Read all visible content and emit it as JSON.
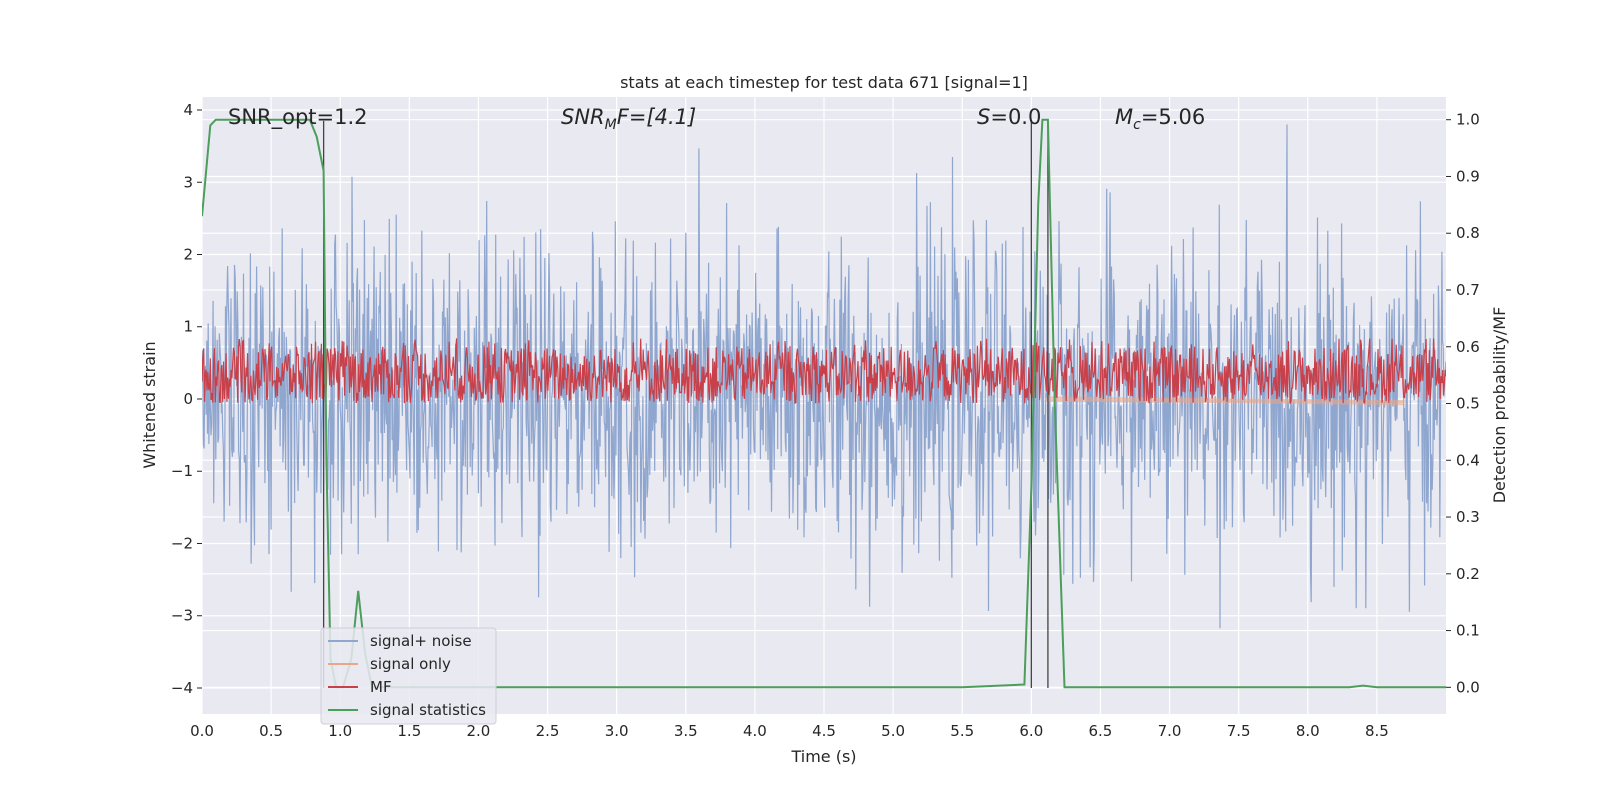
{
  "chart_data": {
    "type": "line",
    "title": "stats at each timestep for test data 671 [signal=1]",
    "xlabel": "Time (s)",
    "ylabel": "Whitened strain",
    "y2label": "Detection probability/MF",
    "xlim": [
      0.0,
      9.0
    ],
    "ylim": [
      -4.36,
      4.18
    ],
    "y2lim": [
      -0.047,
      1.04
    ],
    "xticks": [
      "0.0",
      "0.5",
      "1.0",
      "1.5",
      "2.0",
      "2.5",
      "3.0",
      "3.5",
      "4.0",
      "4.5",
      "5.0",
      "5.5",
      "6.0",
      "6.5",
      "7.0",
      "7.5",
      "8.0",
      "8.5"
    ],
    "yticks": [
      "4",
      "3",
      "2",
      "1",
      "0",
      "−1",
      "−2",
      "−3",
      "−4"
    ],
    "y2ticks": [
      "1.0",
      "0.9",
      "0.8",
      "0.7",
      "0.6",
      "0.5",
      "0.4",
      "0.3",
      "0.2",
      "0.1",
      "0.0"
    ],
    "grid": true,
    "legend_position": "lower-left",
    "annotations": [
      {
        "text": "SNR_opt=1.2"
      },
      {
        "main": "SNR",
        "sub": "M",
        "rest": "F=[4.1]"
      },
      {
        "main": "S",
        "rest": "=0.0"
      },
      {
        "main": "M",
        "sub": "c",
        "rest": "=5.06"
      }
    ],
    "vertical_markers_x": [
      0.88,
      6.0,
      6.12
    ],
    "series": [
      {
        "name": "signal+ noise",
        "color": "#8fa6cf",
        "axis": "left",
        "description": "white-noise whitened strain, roughly within [-3.5, 3.8]",
        "range": [
          -3.5,
          3.8
        ]
      },
      {
        "name": "signal only",
        "color": "#e9a789",
        "axis": "left",
        "x": [
          6.1,
          8.7
        ],
        "y": [
          0.0,
          -0.05
        ]
      },
      {
        "name": "MF",
        "color": "#c8404a",
        "axis": "right",
        "description": "matched filter output fluctuating between about 0.5 and 0.6",
        "range": [
          0.5,
          0.6
        ]
      },
      {
        "name": "signal statistics",
        "color": "#4c9e5b",
        "axis": "right",
        "x": [
          0.0,
          0.06,
          0.1,
          0.2,
          0.5,
          0.78,
          0.83,
          0.88,
          0.9,
          0.93,
          0.97,
          1.02,
          1.08,
          1.13,
          1.18,
          1.23,
          1.3,
          2.0,
          3.0,
          4.0,
          4.4,
          5.0,
          5.5,
          5.95,
          6.0,
          6.05,
          6.08,
          6.12,
          6.17,
          6.24,
          6.3,
          7.0,
          8.0,
          8.3,
          8.4,
          8.5,
          9.0
        ],
        "y": [
          0.83,
          0.99,
          1.0,
          1.0,
          1.0,
          1.0,
          0.97,
          0.91,
          0.4,
          0.05,
          0.0,
          0.0,
          0.05,
          0.17,
          0.06,
          0.0,
          0.0,
          0.0,
          0.0,
          0.0,
          0.0,
          0.0,
          0.0,
          0.005,
          0.35,
          0.85,
          1.0,
          1.0,
          0.5,
          0.0,
          0.0,
          0.0,
          0.0,
          0.0,
          0.003,
          0.0,
          0.0
        ]
      }
    ]
  }
}
